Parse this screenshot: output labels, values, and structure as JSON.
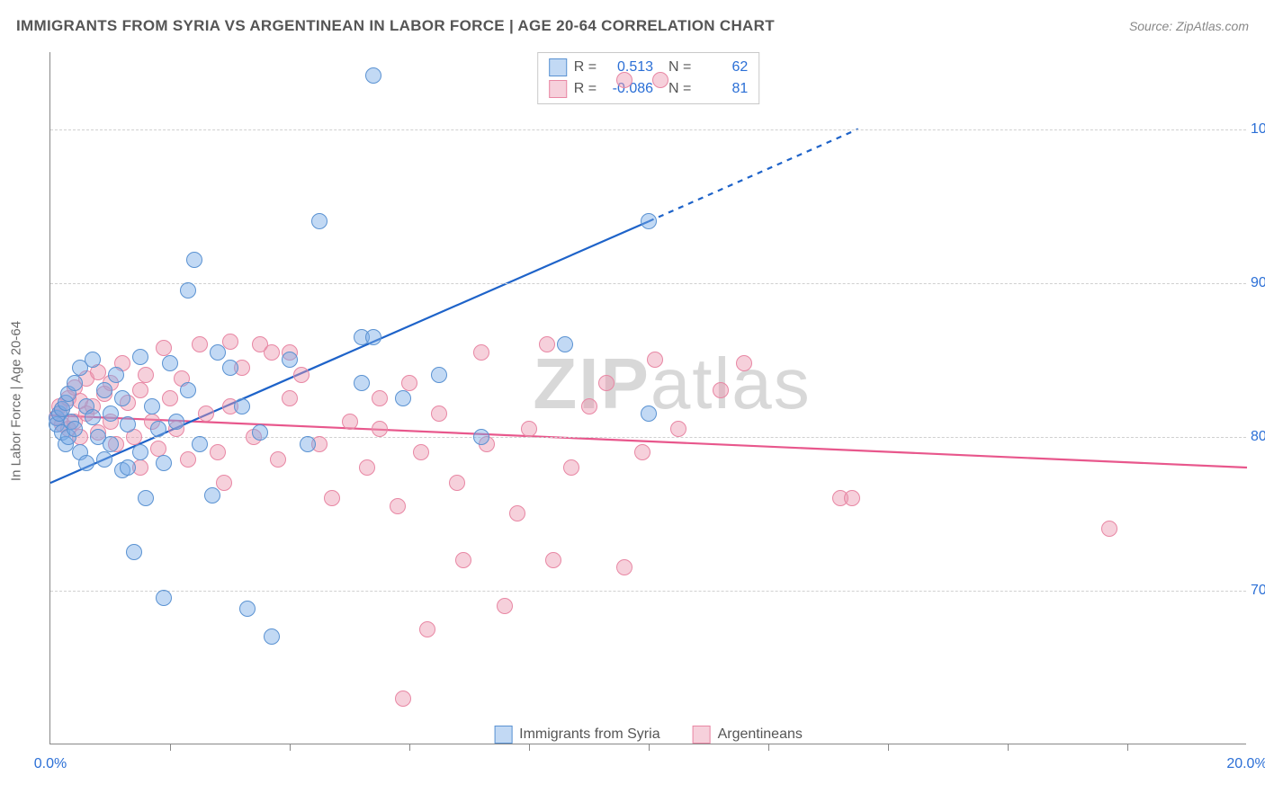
{
  "header": {
    "title": "IMMIGRANTS FROM SYRIA VS ARGENTINEAN IN LABOR FORCE | AGE 20-64 CORRELATION CHART",
    "source": "Source: ZipAtlas.com"
  },
  "watermark": {
    "pre": "ZIP",
    "post": "atlas"
  },
  "chart": {
    "type": "scatter",
    "ylabel": "In Labor Force | Age 20-64",
    "background_color": "#ffffff",
    "grid_color": "#d0d0d0",
    "axis_color": "#888888",
    "tick_label_color": "#2b6fd6",
    "xlim": [
      0,
      20
    ],
    "ylim": [
      60,
      105
    ],
    "xtick_label_positions": [
      0,
      20
    ],
    "xtick_labels": [
      "0.0%",
      "20.0%"
    ],
    "xtick_positions": [
      2,
      4,
      6,
      8,
      10,
      12,
      14,
      16,
      18
    ],
    "ytick_positions": [
      70,
      80,
      90,
      100
    ],
    "ytick_labels": [
      "70.0%",
      "80.0%",
      "90.0%",
      "100.0%"
    ],
    "marker_radius": 9,
    "marker_border_width": 1.5,
    "series": [
      {
        "name": "Immigrants from Syria",
        "color_fill": "rgba(120,170,230,0.45)",
        "color_stroke": "#5a92d2",
        "r_value": "0.513",
        "n_value": "62",
        "trend": {
          "x0": 0,
          "y0": 77.0,
          "x1": 10.0,
          "y1": 94.0,
          "x_extrap": 13.5,
          "y_extrap": 100.0,
          "color": "#1e63c9",
          "width": 2.2
        },
        "points": [
          [
            0.1,
            81.2
          ],
          [
            0.1,
            80.8
          ],
          [
            0.15,
            81.5
          ],
          [
            0.2,
            80.3
          ],
          [
            0.2,
            81.8
          ],
          [
            0.25,
            79.5
          ],
          [
            0.25,
            82.2
          ],
          [
            0.3,
            80.0
          ],
          [
            0.3,
            82.8
          ],
          [
            0.35,
            81.0
          ],
          [
            0.4,
            83.5
          ],
          [
            0.4,
            80.5
          ],
          [
            0.5,
            79.0
          ],
          [
            0.5,
            84.5
          ],
          [
            0.6,
            78.3
          ],
          [
            0.6,
            82.0
          ],
          [
            0.7,
            81.3
          ],
          [
            0.7,
            85.0
          ],
          [
            0.8,
            80.0
          ],
          [
            0.9,
            78.5
          ],
          [
            0.9,
            83.0
          ],
          [
            1.0,
            81.5
          ],
          [
            1.0,
            79.5
          ],
          [
            1.1,
            84.0
          ],
          [
            1.2,
            77.8
          ],
          [
            1.2,
            82.5
          ],
          [
            1.3,
            78.0
          ],
          [
            1.3,
            80.8
          ],
          [
            1.4,
            72.5
          ],
          [
            1.5,
            85.2
          ],
          [
            1.5,
            79.0
          ],
          [
            1.6,
            76.0
          ],
          [
            1.7,
            82.0
          ],
          [
            1.8,
            80.5
          ],
          [
            1.9,
            78.3
          ],
          [
            1.9,
            69.5
          ],
          [
            2.0,
            84.8
          ],
          [
            2.1,
            81.0
          ],
          [
            2.3,
            83.0
          ],
          [
            2.3,
            89.5
          ],
          [
            2.4,
            91.5
          ],
          [
            2.5,
            79.5
          ],
          [
            2.7,
            76.2
          ],
          [
            2.8,
            85.5
          ],
          [
            3.0,
            84.5
          ],
          [
            3.2,
            82.0
          ],
          [
            3.3,
            68.8
          ],
          [
            3.5,
            80.3
          ],
          [
            3.7,
            67.0
          ],
          [
            4.0,
            85.0
          ],
          [
            4.3,
            79.5
          ],
          [
            4.5,
            94.0
          ],
          [
            5.2,
            83.5
          ],
          [
            5.2,
            86.5
          ],
          [
            5.4,
            86.5
          ],
          [
            5.4,
            103.5
          ],
          [
            5.9,
            82.5
          ],
          [
            6.5,
            84.0
          ],
          [
            7.2,
            80.0
          ],
          [
            8.6,
            86.0
          ],
          [
            10.0,
            94.0
          ],
          [
            10.0,
            81.5
          ]
        ]
      },
      {
        "name": "Argentineans",
        "color_fill": "rgba(235,150,175,0.45)",
        "color_stroke": "#e887a4",
        "r_value": "-0.086",
        "n_value": "81",
        "trend": {
          "x0": 0,
          "y0": 81.4,
          "x1": 20.0,
          "y1": 78.0,
          "color": "#e8578c",
          "width": 2.2
        },
        "points": [
          [
            0.1,
            81.3
          ],
          [
            0.15,
            82.0
          ],
          [
            0.2,
            80.8
          ],
          [
            0.2,
            81.8
          ],
          [
            0.3,
            82.5
          ],
          [
            0.3,
            80.5
          ],
          [
            0.4,
            83.2
          ],
          [
            0.4,
            81.0
          ],
          [
            0.5,
            82.3
          ],
          [
            0.5,
            80.0
          ],
          [
            0.6,
            83.8
          ],
          [
            0.6,
            81.5
          ],
          [
            0.7,
            82.0
          ],
          [
            0.8,
            84.2
          ],
          [
            0.8,
            80.3
          ],
          [
            0.9,
            82.8
          ],
          [
            1.0,
            81.0
          ],
          [
            1.0,
            83.5
          ],
          [
            1.1,
            79.5
          ],
          [
            1.2,
            84.8
          ],
          [
            1.3,
            82.2
          ],
          [
            1.4,
            80.0
          ],
          [
            1.5,
            83.0
          ],
          [
            1.5,
            78.0
          ],
          [
            1.6,
            84.0
          ],
          [
            1.7,
            81.0
          ],
          [
            1.8,
            79.2
          ],
          [
            1.9,
            85.8
          ],
          [
            2.0,
            82.5
          ],
          [
            2.1,
            80.5
          ],
          [
            2.2,
            83.8
          ],
          [
            2.3,
            78.5
          ],
          [
            2.5,
            86.0
          ],
          [
            2.6,
            81.5
          ],
          [
            2.8,
            79.0
          ],
          [
            3.0,
            82.0
          ],
          [
            3.0,
            86.2
          ],
          [
            3.2,
            84.5
          ],
          [
            3.4,
            80.0
          ],
          [
            3.5,
            86.0
          ],
          [
            3.8,
            78.5
          ],
          [
            4.0,
            82.5
          ],
          [
            4.2,
            84.0
          ],
          [
            4.5,
            79.5
          ],
          [
            4.7,
            76.0
          ],
          [
            5.0,
            81.0
          ],
          [
            5.3,
            78.0
          ],
          [
            5.5,
            80.5
          ],
          [
            5.8,
            75.5
          ],
          [
            5.9,
            63.0
          ],
          [
            6.0,
            83.5
          ],
          [
            6.2,
            79.0
          ],
          [
            6.3,
            67.5
          ],
          [
            6.5,
            81.5
          ],
          [
            6.8,
            77.0
          ],
          [
            6.9,
            72.0
          ],
          [
            7.2,
            85.5
          ],
          [
            7.3,
            79.5
          ],
          [
            7.6,
            69.0
          ],
          [
            7.8,
            75.0
          ],
          [
            8.0,
            80.5
          ],
          [
            8.3,
            86.0
          ],
          [
            8.4,
            72.0
          ],
          [
            8.7,
            78.0
          ],
          [
            9.0,
            82.0
          ],
          [
            9.3,
            83.5
          ],
          [
            9.6,
            103.2
          ],
          [
            9.6,
            71.5
          ],
          [
            9.9,
            79.0
          ],
          [
            10.1,
            85.0
          ],
          [
            10.2,
            103.2
          ],
          [
            10.5,
            80.5
          ],
          [
            11.2,
            83.0
          ],
          [
            11.6,
            84.8
          ],
          [
            13.2,
            76.0
          ],
          [
            13.4,
            76.0
          ],
          [
            17.7,
            74.0
          ],
          [
            4.0,
            85.5
          ],
          [
            5.5,
            82.5
          ],
          [
            3.7,
            85.5
          ],
          [
            2.9,
            77.0
          ]
        ]
      }
    ]
  },
  "colors": {
    "title_text": "#555555",
    "source_text": "#888888",
    "ylabel_text": "#6a6a6a",
    "stat_label": "#555555",
    "stat_value": "#2b6fd6"
  }
}
